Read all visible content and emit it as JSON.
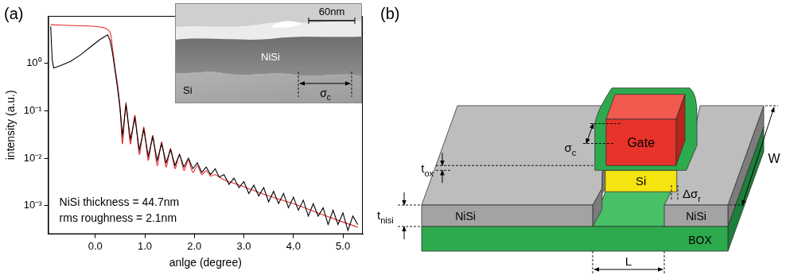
{
  "chart_data": {
    "type": "line",
    "title": "(a)",
    "x_label": "anlge (degree)",
    "y_label": "intensity (a.u.)",
    "log": "y",
    "grid": false,
    "xlim": [
      -0.95,
      5.4
    ],
    "xticks": [
      {
        "value": 0,
        "label": "0.0"
      },
      {
        "value": 1,
        "label": "1.0"
      },
      {
        "value": 2,
        "label": "2.0"
      },
      {
        "value": 3,
        "label": "3.0"
      },
      {
        "value": 4,
        "label": "4.0"
      },
      {
        "value": 5,
        "label": "5.0"
      }
    ],
    "ylim": [
      0.00025,
      10
    ],
    "yticks": [
      {
        "value": 0.001,
        "label": "10⁻³"
      },
      {
        "value": 0.01,
        "label": "10⁻²"
      },
      {
        "value": 0.1,
        "label": "10⁻¹"
      },
      {
        "value": 1,
        "label": "10⁰"
      }
    ],
    "annotations": [
      "NiSi thickness = 44.7nm",
      "rms roughness = 2.1nm"
    ],
    "series": [
      {
        "color": "#000000",
        "line_style": "solid",
        "marker": "none",
        "x": [
          -0.9,
          -0.87,
          -0.84,
          -0.7,
          -0.5,
          -0.3,
          -0.1,
          0.1,
          0.25,
          0.3,
          0.35,
          0.4,
          0.45,
          0.5,
          0.55,
          0.62,
          0.71,
          0.8,
          0.89,
          0.98,
          1.07,
          1.16,
          1.25,
          1.34,
          1.43,
          1.52,
          1.61,
          1.7,
          1.79,
          1.88,
          1.97,
          2.06,
          2.15,
          2.24,
          2.33,
          2.42,
          2.5,
          2.6,
          2.7,
          2.8,
          2.9,
          3.0,
          3.1,
          3.2,
          3.3,
          3.4,
          3.5,
          3.6,
          3.7,
          3.8,
          3.9,
          4.0,
          4.1,
          4.2,
          4.3,
          4.4,
          4.5,
          4.6,
          4.7,
          4.8,
          4.9,
          5.0,
          5.1,
          5.2,
          5.3
        ],
        "values": [
          6,
          1.2,
          0.8,
          0.9,
          1.1,
          1.5,
          2.2,
          3.2,
          4,
          3,
          1.6,
          0.7,
          0.3,
          0.11,
          0.03,
          0.13,
          0.025,
          0.07,
          0.015,
          0.04,
          0.011,
          0.028,
          0.009,
          0.02,
          0.008,
          0.015,
          0.007,
          0.012,
          0.0065,
          0.01,
          0.006,
          0.008,
          0.005,
          0.0065,
          0.0045,
          0.006,
          0.004,
          0.0045,
          0.0028,
          0.0038,
          0.0024,
          0.0032,
          0.0018,
          0.0027,
          0.0016,
          0.0024,
          0.0012,
          0.002,
          0.0011,
          0.0018,
          0.0009,
          0.0015,
          0.0008,
          0.0013,
          0.0006,
          0.0011,
          0.0006,
          0.0009,
          0.0004,
          0.0008,
          0.0004,
          0.0007,
          0.0003,
          0.0006,
          0.0004
        ]
      },
      {
        "color": "#e8262a",
        "line_style": "solid",
        "marker": "none",
        "x": [
          -0.9,
          -0.5,
          0,
          0.2,
          0.3,
          0.35,
          0.4,
          0.45,
          0.5,
          0.55,
          0.62,
          0.71,
          0.8,
          0.89,
          0.98,
          1.07,
          1.16,
          1.25,
          1.34,
          1.43,
          1.52,
          1.61,
          1.7,
          1.79,
          1.88,
          1.97,
          2.06,
          2.15,
          2.24,
          2.33,
          2.42,
          2.6,
          3,
          3.5,
          4,
          4.5,
          5,
          5.3
        ],
        "values": [
          6.5,
          6.3,
          6,
          5.5,
          4.5,
          2,
          0.8,
          0.35,
          0.12,
          0.02,
          0.15,
          0.02,
          0.08,
          0.012,
          0.045,
          0.009,
          0.03,
          0.007,
          0.022,
          0.0065,
          0.016,
          0.006,
          0.012,
          0.0055,
          0.009,
          0.005,
          0.007,
          0.0045,
          0.0055,
          0.0042,
          0.0045,
          0.0035,
          0.0025,
          0.0016,
          0.0011,
          0.0007,
          0.00045,
          0.00035
        ]
      }
    ]
  },
  "inset": {
    "scale_bar": "60nm",
    "layer": "NiSi",
    "substrate": "Si",
    "dimension": {
      "text": "σ",
      "sub": "c"
    }
  },
  "diagram": {
    "label": "(b)",
    "blocks": {
      "gate": "Gate",
      "channel": "Si",
      "source": "NiSi",
      "drain": "NiSi",
      "box": "BOX"
    },
    "dimensions": {
      "t_ox": {
        "text": "t",
        "sub": "ox"
      },
      "sigma_c": {
        "text": "σ",
        "sub": "c"
      },
      "delta_sigma_r": {
        "text": "Δσ",
        "sub": "r"
      },
      "width": {
        "text": "W"
      },
      "t_nisi": {
        "text": "t",
        "sub": "nisi"
      },
      "length": {
        "text": "L"
      }
    }
  }
}
